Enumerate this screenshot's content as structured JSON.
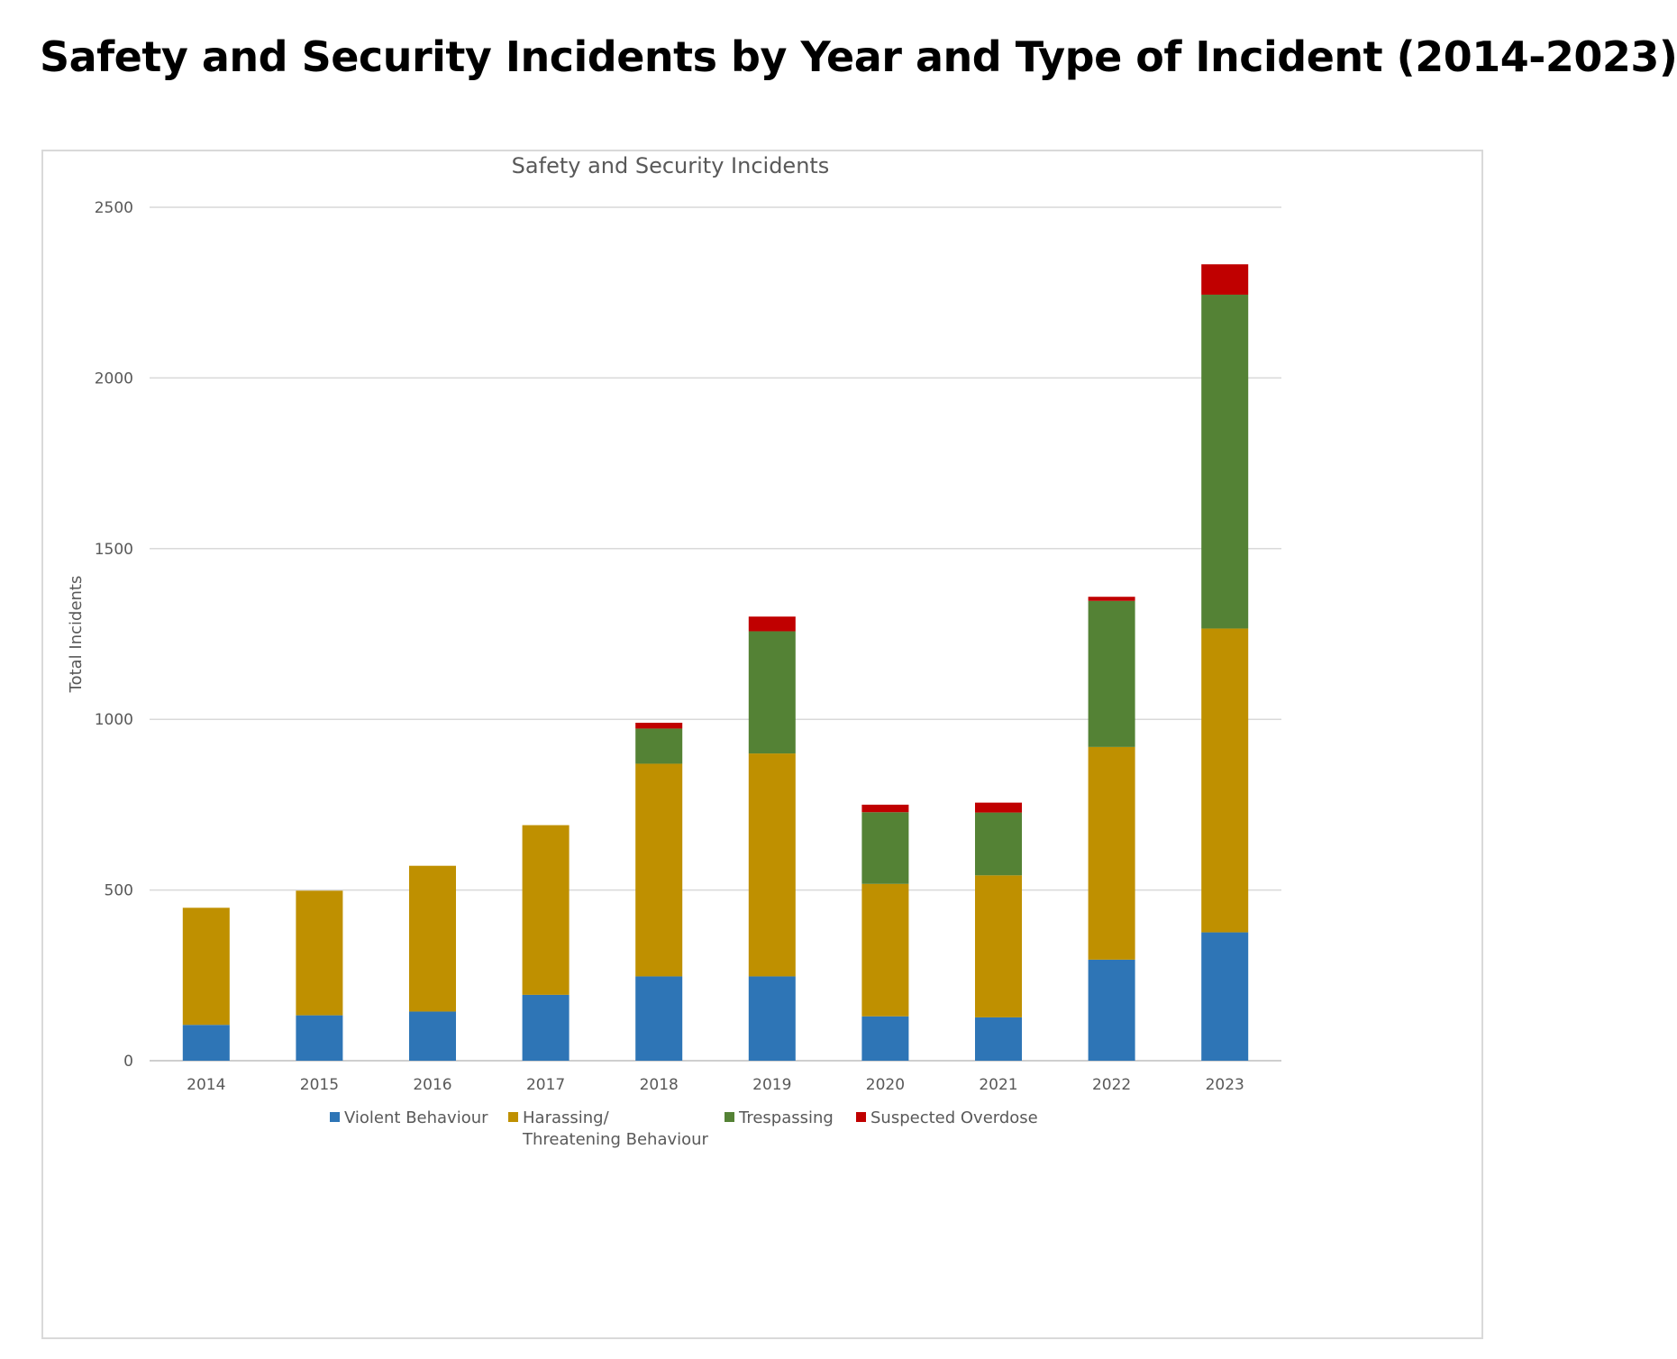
{
  "page": {
    "heading": "Safety and Security Incidents by Year and Type of Incident (2014-2023)"
  },
  "chart_data": {
    "type": "bar",
    "stacked": true,
    "title": "Safety and Security Incidents",
    "xlabel": "",
    "ylabel": "Total Incidents",
    "ylim": [
      0,
      2500
    ],
    "yticks": [
      0,
      500,
      1000,
      1500,
      2000,
      2500
    ],
    "grid": true,
    "legend_position": "bottom",
    "categories": [
      "2014",
      "2015",
      "2016",
      "2017",
      "2018",
      "2019",
      "2020",
      "2021",
      "2022",
      "2023"
    ],
    "series": [
      {
        "name": "Violent Behaviour",
        "color": "#2e75b6",
        "values": [
          105,
          133,
          144,
          193,
          247,
          247,
          130,
          127,
          296,
          376
        ]
      },
      {
        "name": "Harassing/ Threatening Behaviour",
        "legend_lines": [
          "Harassing/",
          "Threatening Behaviour"
        ],
        "color": "#bf9000",
        "values": [
          343,
          365,
          427,
          497,
          623,
          653,
          388,
          416,
          623,
          890
        ]
      },
      {
        "name": "Trespassing",
        "color": "#548235",
        "values": [
          0,
          0,
          0,
          0,
          103,
          358,
          210,
          184,
          428,
          978
        ]
      },
      {
        "name": "Suspected Overdose",
        "color": "#c00000",
        "values": [
          0,
          0,
          0,
          0,
          17,
          43,
          22,
          29,
          12,
          89
        ]
      }
    ]
  }
}
